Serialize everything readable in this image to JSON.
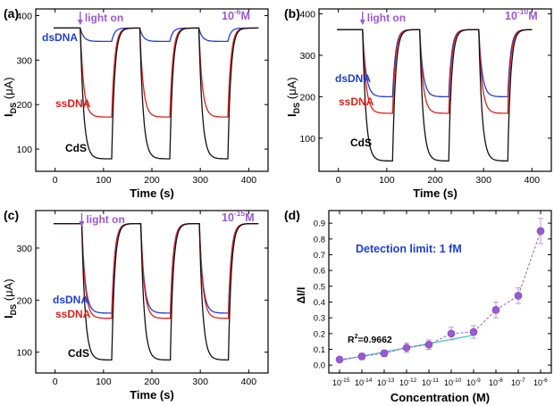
{
  "chart_data": [
    {
      "type": "line",
      "panel": "(a)",
      "concentration": "10",
      "concentration_exp": "-6",
      "concentration_unit": "M",
      "annotation": "light on",
      "xlabel": "Time (s)",
      "ylabel_main": "I",
      "ylabel_sub": "DS",
      "ylabel_unit": "(μA)",
      "xlim": [
        -40,
        440
      ],
      "ylim": [
        50,
        415
      ],
      "xticks": [
        0,
        100,
        200,
        300,
        400
      ],
      "yticks": [
        100,
        200,
        300,
        400
      ],
      "cycles": [
        [
          52,
          117
        ],
        [
          175,
          237
        ],
        [
          297,
          357
        ]
      ],
      "t_end": 420,
      "series": [
        {
          "name": "dsDNA",
          "color": "#1f3fd6",
          "baseline": 372,
          "min": 342
        },
        {
          "name": "ssDNA",
          "color": "#e0201c",
          "baseline": 372,
          "min": 172
        },
        {
          "name": "CdS",
          "color": "#111111",
          "baseline": 372,
          "min": 78
        }
      ]
    },
    {
      "type": "line",
      "panel": "(b)",
      "concentration": "10",
      "concentration_exp": "-10",
      "concentration_unit": "M",
      "annotation": "light on",
      "xlabel": "Time (s)",
      "ylabel_main": "I",
      "ylabel_sub": "DS",
      "ylabel_unit": "(μA)",
      "xlim": [
        -40,
        440
      ],
      "ylim": [
        20,
        412
      ],
      "xticks": [
        0,
        100,
        200,
        300,
        400
      ],
      "yticks": [
        100,
        200,
        300,
        400
      ],
      "cycles": [
        [
          50,
          112
        ],
        [
          168,
          228
        ],
        [
          290,
          350
        ]
      ],
      "t_end": 400,
      "series": [
        {
          "name": "dsDNA",
          "color": "#1f3fd6",
          "baseline": 362,
          "min": 200
        },
        {
          "name": "ssDNA",
          "color": "#e0201c",
          "baseline": 362,
          "min": 160
        },
        {
          "name": "CdS",
          "color": "#111111",
          "baseline": 362,
          "min": 45
        }
      ]
    },
    {
      "type": "line",
      "panel": "(c)",
      "concentration": "10",
      "concentration_exp": "-15",
      "concentration_unit": "M",
      "annotation": "light on",
      "xlabel": "Time (s)",
      "ylabel_main": "I",
      "ylabel_sub": "DS",
      "ylabel_unit": "(μA)",
      "xlim": [
        -40,
        440
      ],
      "ylim": [
        60,
        372
      ],
      "xticks": [
        0,
        100,
        200,
        300,
        400
      ],
      "yticks": [
        100,
        200,
        300
      ],
      "cycles": [
        [
          55,
          117
        ],
        [
          177,
          238
        ],
        [
          298,
          358
        ]
      ],
      "t_end": 420,
      "series": [
        {
          "name": "dsDNA",
          "color": "#1f3fd6",
          "baseline": 347,
          "min": 175
        },
        {
          "name": "ssDNA",
          "color": "#e0201c",
          "baseline": 347,
          "min": 165
        },
        {
          "name": "CdS",
          "color": "#111111",
          "baseline": 347,
          "min": 85
        }
      ]
    },
    {
      "type": "scatter",
      "panel": "(d)",
      "annotation": "Detection limit: 1 fM",
      "fit_label": "R",
      "fit_label_sup": "2",
      "fit_label_value": "=0.9662",
      "xlabel": "Concentration (M)",
      "ylabel": "ΔI/I",
      "ylim": [
        -0.05,
        0.98
      ],
      "yticks": [
        0.0,
        0.1,
        0.2,
        0.3,
        0.4,
        0.5,
        0.6,
        0.7,
        0.8,
        0.9
      ],
      "xtick_base": "10",
      "xtick_exps": [
        "-15",
        "-14",
        "-13",
        "-12",
        "-11",
        "-10",
        "-9",
        "-8",
        "-7",
        "-6"
      ],
      "point_color": "#9b59d6",
      "series": [
        {
          "name": "ΔI/I",
          "values": [
            0.035,
            0.055,
            0.075,
            0.11,
            0.13,
            0.2,
            0.21,
            0.35,
            0.44,
            0.85
          ],
          "errors": [
            0.015,
            0.02,
            0.02,
            0.03,
            0.03,
            0.04,
            0.04,
            0.05,
            0.05,
            0.08
          ]
        }
      ],
      "fit": {
        "from_exp": "-15",
        "to_exp": "-9",
        "start": 0.03,
        "end": 0.19
      }
    }
  ]
}
